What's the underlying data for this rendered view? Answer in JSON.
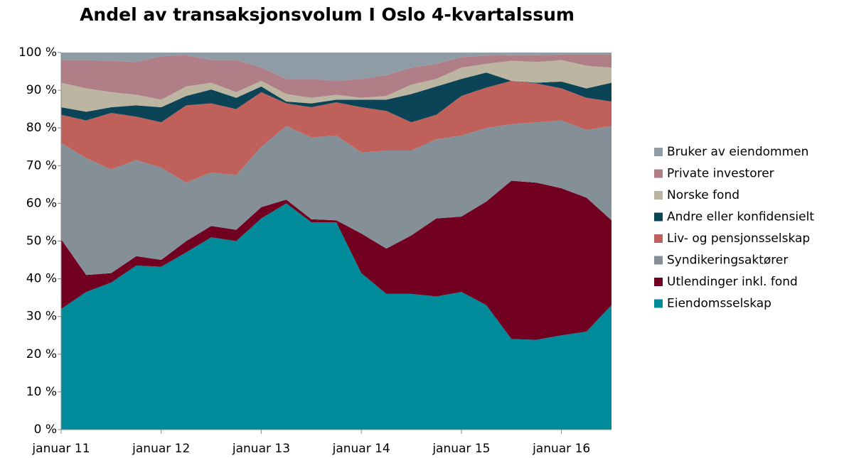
{
  "chart_data": {
    "type": "stacked_area",
    "title": "Andel av transaksjonsvolum I Oslo 4-kvartalssum",
    "categories": [
      "januar 11",
      null,
      null,
      null,
      "januar 12",
      null,
      null,
      null,
      "januar 13",
      null,
      null,
      null,
      "januar 14",
      null,
      null,
      null,
      "januar 15",
      null,
      null,
      null,
      "januar 16",
      null,
      null
    ],
    "ylim": [
      0,
      100
    ],
    "yticks": [
      {
        "value": 0,
        "label": "0 %"
      },
      {
        "value": 10,
        "label": "10 %"
      },
      {
        "value": 20,
        "label": "20 %"
      },
      {
        "value": 30,
        "label": "30 %"
      },
      {
        "value": 40,
        "label": "40 %"
      },
      {
        "value": 50,
        "label": "50 %"
      },
      {
        "value": 60,
        "label": "60 %"
      },
      {
        "value": 70,
        "label": "70 %"
      },
      {
        "value": 80,
        "label": "80 %"
      },
      {
        "value": 90,
        "label": "90 %"
      },
      {
        "value": 100,
        "label": "100 %"
      }
    ],
    "series": [
      {
        "name": "Eiendomsselskap",
        "color": "#008b9a",
        "values": [
          32,
          36.5,
          39,
          43.5,
          43.2,
          47,
          51,
          50,
          56,
          60,
          55,
          55,
          41.5,
          36,
          36,
          35.3,
          36.5,
          33,
          24,
          23.8,
          25,
          26,
          33
        ]
      },
      {
        "name": "Utlendinger inkl. fond",
        "color": "#720020",
        "values": [
          18.5,
          4.5,
          2.5,
          2.5,
          1.8,
          3,
          3,
          3,
          3,
          1,
          0.8,
          0.5,
          10.5,
          12,
          15.5,
          20.7,
          20,
          27.5,
          42,
          41.7,
          39,
          35.5,
          22.5
        ]
      },
      {
        "name": "Syndikeringsaktører",
        "color": "#848f98",
        "values": [
          25.5,
          31,
          27.5,
          25.5,
          24.5,
          15.5,
          14.2,
          14.5,
          16,
          19.5,
          21.7,
          22.5,
          21.5,
          26,
          22.5,
          21,
          21.5,
          19.5,
          15,
          16,
          18,
          18,
          25
        ]
      },
      {
        "name": "Liv- og pensjonsselskap",
        "color": "#c0605a",
        "values": [
          7.5,
          10,
          15,
          11.5,
          12,
          20.5,
          18.3,
          17.5,
          14.5,
          6,
          8,
          8.8,
          12,
          10.5,
          7.5,
          6.5,
          10.5,
          10.7,
          11.5,
          10.3,
          8.5,
          8.5,
          6.5
        ]
      },
      {
        "name": "Andre eller konfidensielt",
        "color": "#0c4457",
        "values": [
          2,
          2.3,
          1.5,
          3,
          4,
          2.5,
          3.7,
          3,
          1.5,
          0.5,
          1,
          0.7,
          2,
          3,
          7.5,
          7.5,
          4.5,
          4,
          0,
          0.2,
          1.8,
          2.5,
          5
        ]
      },
      {
        "name": "Norske fond",
        "color": "#bcb5a1",
        "values": [
          6.5,
          6.2,
          4,
          2.8,
          2,
          2.5,
          1.8,
          1.5,
          1.5,
          2,
          1.5,
          1.3,
          0.5,
          1,
          2.5,
          2,
          3,
          2.3,
          5.3,
          5.5,
          5.7,
          6,
          4
        ]
      },
      {
        "name": "Private investorer",
        "color": "#b07e86",
        "values": [
          6,
          7.5,
          8.3,
          8.7,
          11.5,
          8.3,
          6,
          8.5,
          3.5,
          4,
          5,
          3.7,
          5,
          5.5,
          4.5,
          4,
          2.8,
          2.2,
          1.5,
          1.8,
          1.5,
          3,
          3.5
        ]
      },
      {
        "name": "Bruker av eiendommen",
        "color": "#8f9ba5",
        "values": [
          2,
          2,
          2.2,
          2.5,
          1,
          0.7,
          2,
          2,
          4,
          7,
          7,
          7.5,
          7,
          6,
          4,
          3,
          1.2,
          0.8,
          0.7,
          0.7,
          0.5,
          0.5,
          0.5
        ]
      }
    ]
  }
}
